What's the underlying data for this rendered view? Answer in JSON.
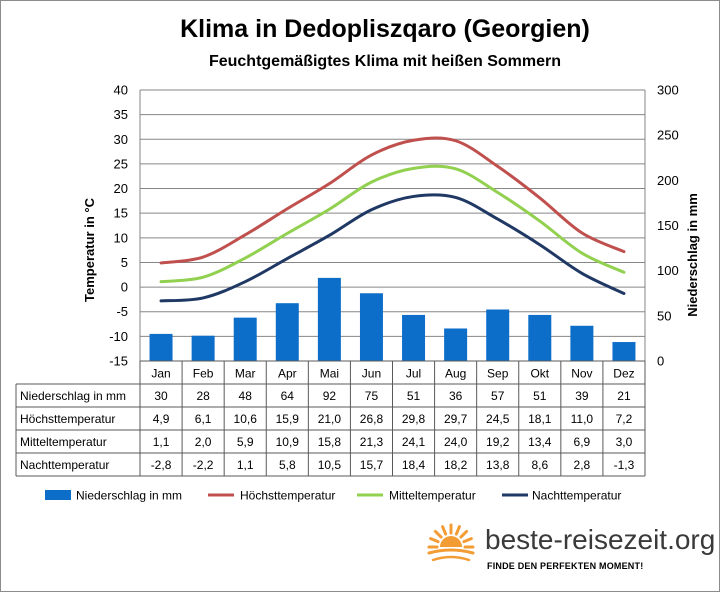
{
  "title": "Klima in Dedopliszqaro (Georgien)",
  "subtitle": "Feuchtgemäßigtes  Klima mit heißen Sommern",
  "chart_data": {
    "type": "bar",
    "categories": [
      "Jan",
      "Feb",
      "Mar",
      "Apr",
      "Mai",
      "Jun",
      "Jul",
      "Aug",
      "Sep",
      "Okt",
      "Nov",
      "Dez"
    ],
    "y_left": {
      "label": "Temperatur in °C",
      "min": -15,
      "max": 40,
      "step": 5
    },
    "y_right": {
      "label": "Niederschlag in mm",
      "min": 0,
      "max": 300,
      "step": 50
    },
    "grid": "horizontal",
    "legend_position": "bottom",
    "series": [
      {
        "name": "Niederschlag in mm",
        "type": "bar",
        "axis": "right",
        "color": "#0d6ec9",
        "values": [
          30,
          28,
          48,
          64,
          92,
          75,
          51,
          36,
          57,
          51,
          39,
          21
        ]
      },
      {
        "name": "Höchsttemperatur",
        "type": "line",
        "axis": "left",
        "color": "#c0504d",
        "values": [
          4.9,
          6.1,
          10.6,
          15.9,
          21.0,
          26.8,
          29.8,
          29.7,
          24.5,
          18.1,
          11.0,
          7.2
        ]
      },
      {
        "name": "Mitteltemperatur",
        "type": "line",
        "axis": "left",
        "color": "#92d050",
        "values": [
          1.1,
          2.0,
          5.9,
          10.9,
          15.8,
          21.3,
          24.1,
          24.0,
          19.2,
          13.4,
          6.9,
          3.0
        ]
      },
      {
        "name": "Nachttemperatur",
        "type": "line",
        "axis": "left",
        "color": "#1f3864",
        "values": [
          -2.8,
          -2.2,
          1.1,
          5.8,
          10.5,
          15.7,
          18.4,
          18.2,
          13.8,
          8.6,
          2.8,
          -1.3
        ]
      }
    ],
    "table_rows": [
      {
        "label": "Niederschlag in mm",
        "cells": [
          "30",
          "28",
          "48",
          "64",
          "92",
          "75",
          "51",
          "36",
          "57",
          "51",
          "39",
          "21"
        ]
      },
      {
        "label": "Höchsttemperatur",
        "cells": [
          "4,9",
          "6,1",
          "10,6",
          "15,9",
          "21,0",
          "26,8",
          "29,8",
          "29,7",
          "24,5",
          "18,1",
          "11,0",
          "7,2"
        ]
      },
      {
        "label": "Mitteltemperatur",
        "cells": [
          "1,1",
          "2,0",
          "5,9",
          "10,9",
          "15,8",
          "21,3",
          "24,1",
          "24,0",
          "19,2",
          "13,4",
          "6,9",
          "3,0"
        ]
      },
      {
        "label": "Nachttemperatur",
        "cells": [
          "-2,8",
          "-2,2",
          "1,1",
          "5,8",
          "10,5",
          "15,7",
          "18,4",
          "18,2",
          "13,8",
          "8,6",
          "2,8",
          "-1,3"
        ]
      }
    ]
  },
  "brand": {
    "name": "beste-reisezeit.org",
    "tagline": "FINDE DEN PERFEKTEN MOMENT!",
    "sun_color": "#f39c34"
  }
}
